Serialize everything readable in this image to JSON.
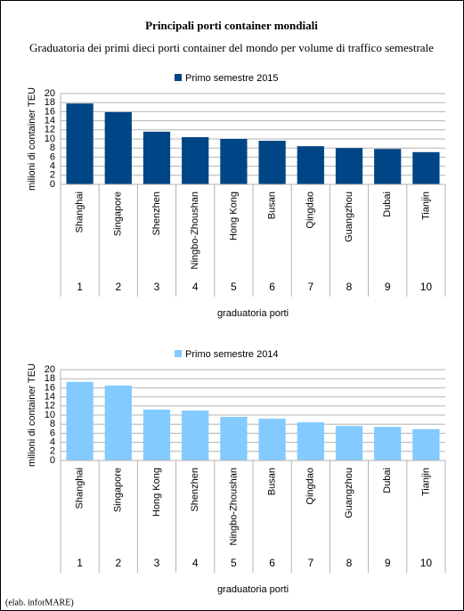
{
  "title": "Principali porti container mondiali",
  "subtitle": "Graduatoria dei primi dieci porti container del mondo per volume di traffico semestrale",
  "note": "(elab. inforMARE)",
  "chart_data": [
    {
      "type": "bar",
      "ylabel": "milioni di container TEU",
      "xlabel": "graduatoria porti",
      "categories": [
        "Shanghai",
        "Singapore",
        "Shenzhen",
        "Ningbo-Zhoushan",
        "Hong Kong",
        "Busan",
        "Qingdao",
        "Guangzhou",
        "Dubai",
        "Tianjin"
      ],
      "ranks": [
        1,
        2,
        3,
        4,
        5,
        6,
        7,
        8,
        9,
        10
      ],
      "series": [
        {
          "name": "Primo semestre 2015",
          "color": "#004586",
          "values": [
            17.8,
            15.9,
            11.6,
            10.4,
            10.0,
            9.6,
            8.4,
            8.0,
            7.8,
            7.1
          ]
        }
      ],
      "ylim": [
        0,
        20
      ],
      "yticks": [
        0,
        2,
        4,
        6,
        8,
        10,
        12,
        14,
        16,
        18,
        20
      ],
      "grid": true
    },
    {
      "type": "bar",
      "ylabel": "milioni di container TEU",
      "xlabel": "graduatoria porti",
      "categories": [
        "Shanghai",
        "Singapore",
        "Hong Kong",
        "Shenzhen",
        "Ningbo-Zhoushan",
        "Busan",
        "Qingdao",
        "Guangzhou",
        "Dubai",
        "Tianjin"
      ],
      "ranks": [
        1,
        2,
        3,
        4,
        5,
        6,
        7,
        8,
        9,
        10
      ],
      "series": [
        {
          "name": "Primo semestre 2014",
          "color": "#83caff",
          "values": [
            17.3,
            16.5,
            11.2,
            11.0,
            9.6,
            9.2,
            8.4,
            7.6,
            7.4,
            6.9
          ]
        }
      ],
      "ylim": [
        0,
        20
      ],
      "yticks": [
        0,
        2,
        4,
        6,
        8,
        10,
        12,
        14,
        16,
        18,
        20
      ],
      "grid": true
    }
  ]
}
